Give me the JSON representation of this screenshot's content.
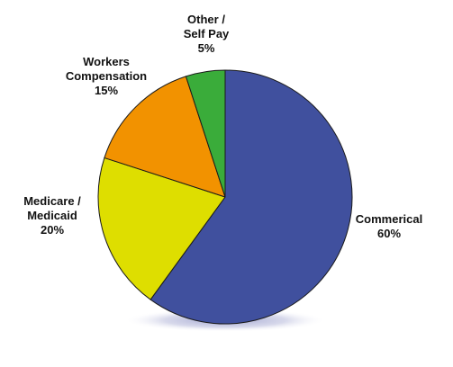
{
  "chart_data": {
    "type": "pie",
    "title": "",
    "start_angle_deg": 0,
    "direction": "clockwise",
    "legend": "none",
    "slices": [
      {
        "label_lines": [
          "Commerical",
          "60%"
        ],
        "value": 60,
        "color": "#40509e"
      },
      {
        "label_lines": [
          "Medicare /",
          "Medicaid",
          "20%"
        ],
        "value": 20,
        "color": "#dede00"
      },
      {
        "label_lines": [
          "Workers",
          "Compensation",
          "15%"
        ],
        "value": 15,
        "color": "#f29200"
      },
      {
        "label_lines": [
          "Other /",
          "Self Pay",
          "5%"
        ],
        "value": 5,
        "color": "#3aac3a"
      }
    ]
  }
}
